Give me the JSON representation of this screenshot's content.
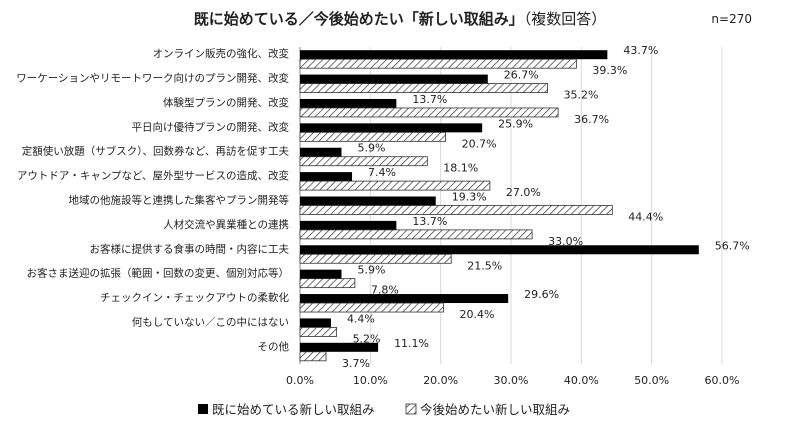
{
  "header": {
    "title": "既に始めている／今後始めたい「新しい取組み」",
    "title_suffix": "（複数回答）",
    "sample_size": "n=270"
  },
  "colors": {
    "started": "#000000",
    "future_hatch": "#333333",
    "gridline": "#d9d9d9",
    "axis": "#888888"
  },
  "chart_data": {
    "type": "bar",
    "orientation": "horizontal",
    "title": "既に始めている／今後始めたい「新しい取組み」（複数回答）",
    "xlim": [
      0,
      60
    ],
    "x_ticks": [
      "0.0%",
      "10.0%",
      "20.0%",
      "30.0%",
      "40.0%",
      "50.0%",
      "60.0%"
    ],
    "grid": true,
    "legend_position": "bottom",
    "categories": [
      "オンライン販売の強化、改変",
      "ワーケーションやリモートワーク向けのプラン開発、改変",
      "体験型プランの開発、改変",
      "平日向け優待プランの開発、改変",
      "定額使い放題（サブスク）、回数券など、再訪を促す工夫",
      "アウトドア・キャンプなど、屋外型サービスの造成、改変",
      "地域の他施設等と連携した集客やプラン開発等",
      "人材交流や異業種との連携",
      "お客様に提供する食事の時間・内容に工夫",
      "お客さま送迎の拡張（範囲・回数の変更、個別対応等）",
      "チェックイン・チェックアウトの柔軟化",
      "何もしていない／この中にはない",
      "その他"
    ],
    "series": [
      {
        "name": "既に始めている新しい取組み",
        "values": [
          43.7,
          26.7,
          13.7,
          25.9,
          5.9,
          7.4,
          19.3,
          13.7,
          56.7,
          5.9,
          29.6,
          4.4,
          11.1
        ],
        "labels": [
          "43.7%",
          "26.7%",
          "13.7%",
          "25.9%",
          "5.9%",
          "7.4%",
          "19.3%",
          "13.7%",
          "56.7%",
          "5.9%",
          "29.6%",
          "4.4%",
          "11.1%"
        ]
      },
      {
        "name": "今後始めたい新しい取組み",
        "values": [
          39.3,
          35.2,
          36.7,
          20.7,
          18.1,
          27.0,
          44.4,
          33.0,
          21.5,
          7.8,
          20.4,
          5.2,
          3.7
        ],
        "labels": [
          "39.3%",
          "35.2%",
          "36.7%",
          "20.7%",
          "18.1%",
          "27.0%",
          "44.4%",
          "33.0%",
          "21.5%",
          "7.8%",
          "20.4%",
          "5.2%",
          "3.7%"
        ]
      }
    ]
  }
}
